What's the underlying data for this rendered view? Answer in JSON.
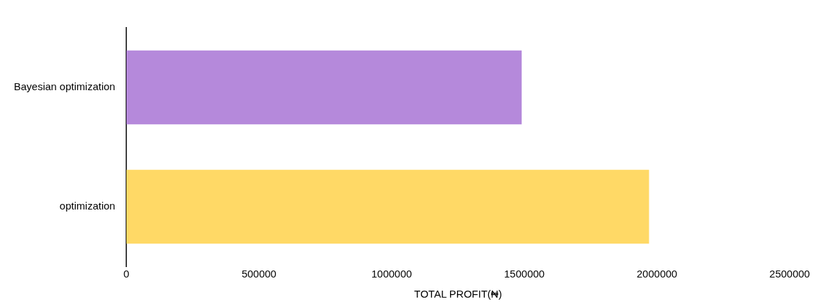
{
  "chart_data": {
    "type": "bar",
    "orientation": "horizontal",
    "xlabel": "TOTAL PROFIT(₦)",
    "categories": [
      "Bayesian optimization",
      "optimization"
    ],
    "values": [
      1490000,
      1970000
    ],
    "colors": [
      "#b589db",
      "#ffd966"
    ],
    "xlim": [
      0,
      2500000
    ],
    "xticks": [
      0,
      500000,
      1000000,
      1500000,
      2000000,
      2500000
    ],
    "grid": false,
    "legend": false
  }
}
